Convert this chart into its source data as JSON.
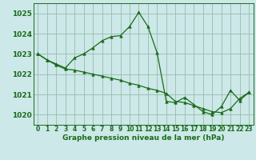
{
  "title": "Graphe pression niveau de la mer (hPa)",
  "background_color": "#cce8e8",
  "grid_color": "#99bbaa",
  "line_color": "#1a6b1a",
  "xlim": [
    -0.5,
    23.5
  ],
  "ylim": [
    1019.5,
    1025.5
  ],
  "yticks": [
    1020,
    1021,
    1022,
    1023,
    1024,
    1025
  ],
  "xticks": [
    0,
    1,
    2,
    3,
    4,
    5,
    6,
    7,
    8,
    9,
    10,
    11,
    12,
    13,
    14,
    15,
    16,
    17,
    18,
    19,
    20,
    21,
    22,
    23
  ],
  "series1_x": [
    0,
    1,
    2,
    3,
    4,
    5,
    6,
    7,
    8,
    9,
    10,
    11,
    12,
    13,
    14,
    15,
    16,
    17,
    18,
    19,
    20,
    21,
    22,
    23
  ],
  "series1_y": [
    1023.0,
    1022.7,
    1022.5,
    1022.3,
    1022.8,
    1023.0,
    1023.3,
    1023.65,
    1023.85,
    1023.9,
    1024.35,
    1025.05,
    1024.35,
    1023.05,
    1020.65,
    1020.6,
    1020.85,
    1020.5,
    1020.15,
    1020.0,
    1020.4,
    1021.2,
    1020.7,
    1021.1
  ],
  "series2_x": [
    0,
    1,
    2,
    3,
    4,
    5,
    6,
    7,
    8,
    9,
    10,
    11,
    12,
    13,
    14,
    15,
    16,
    17,
    18,
    19,
    20,
    21,
    22,
    23
  ],
  "series2_y": [
    1023.0,
    1022.7,
    1022.45,
    1022.25,
    1022.2,
    1022.1,
    1022.0,
    1021.9,
    1021.8,
    1021.7,
    1021.55,
    1021.45,
    1021.3,
    1021.2,
    1021.05,
    1020.65,
    1020.6,
    1020.45,
    1020.3,
    1020.15,
    1020.1,
    1020.3,
    1020.8,
    1021.1
  ],
  "xlabel_fontsize": 6.5,
  "ytick_fontsize": 6.5,
  "xtick_fontsize": 5.5
}
